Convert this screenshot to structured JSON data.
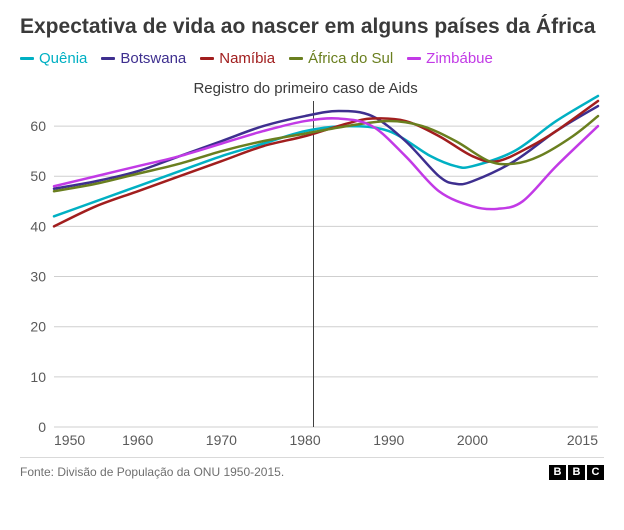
{
  "title": "Expectativa de vida ao nascer em alguns países da África",
  "legend": [
    {
      "label": "Quênia",
      "color": "#00b0c3"
    },
    {
      "label": "Botswana",
      "color": "#3e2f8f"
    },
    {
      "label": "Namíbia",
      "color": "#a11e1e"
    },
    {
      "label": "África do Sul",
      "color": "#6a7f1f"
    },
    {
      "label": "Zimbábue",
      "color": "#c23ae6"
    }
  ],
  "chart": {
    "type": "line",
    "background_color": "#ffffff",
    "grid_color": "#cfcfcf",
    "font_family": "Arial",
    "tick_fontsize": 14,
    "xlim": [
      1950,
      2015
    ],
    "ylim": [
      0,
      65
    ],
    "xticks": [
      1950,
      1960,
      1970,
      1980,
      1990,
      2000,
      2015
    ],
    "yticks": [
      0,
      10,
      20,
      30,
      40,
      50,
      60
    ],
    "line_width": 2.5,
    "annotation": {
      "x": 1981,
      "text": "Registro do primeiro caso de Aids",
      "line_color": "#404040",
      "fontsize": 15
    },
    "series": [
      {
        "name": "Quênia",
        "color": "#00b0c3",
        "points": [
          [
            1950,
            42
          ],
          [
            1955,
            45
          ],
          [
            1960,
            48
          ],
          [
            1965,
            51
          ],
          [
            1970,
            54
          ],
          [
            1975,
            56.5
          ],
          [
            1980,
            59
          ],
          [
            1985,
            60
          ],
          [
            1990,
            59
          ],
          [
            1995,
            54
          ],
          [
            1998,
            52
          ],
          [
            2000,
            52
          ],
          [
            2005,
            55
          ],
          [
            2010,
            61
          ],
          [
            2015,
            66
          ]
        ]
      },
      {
        "name": "Botswana",
        "color": "#3e2f8f",
        "points": [
          [
            1950,
            47.5
          ],
          [
            1955,
            49
          ],
          [
            1960,
            51
          ],
          [
            1965,
            54
          ],
          [
            1970,
            57
          ],
          [
            1975,
            60
          ],
          [
            1980,
            62
          ],
          [
            1984,
            63
          ],
          [
            1988,
            62
          ],
          [
            1992,
            57
          ],
          [
            1996,
            50
          ],
          [
            1998,
            48.5
          ],
          [
            2000,
            49
          ],
          [
            2005,
            53
          ],
          [
            2010,
            59
          ],
          [
            2015,
            64
          ]
        ]
      },
      {
        "name": "Namíbia",
        "color": "#a11e1e",
        "points": [
          [
            1950,
            40
          ],
          [
            1955,
            44
          ],
          [
            1960,
            47
          ],
          [
            1965,
            50
          ],
          [
            1970,
            53
          ],
          [
            1975,
            56
          ],
          [
            1980,
            58
          ],
          [
            1985,
            60.5
          ],
          [
            1988,
            61.5
          ],
          [
            1992,
            61
          ],
          [
            1996,
            58
          ],
          [
            2000,
            54
          ],
          [
            2003,
            53
          ],
          [
            2007,
            56
          ],
          [
            2010,
            59
          ],
          [
            2015,
            65
          ]
        ]
      },
      {
        "name": "África do Sul",
        "color": "#6a7f1f",
        "points": [
          [
            1950,
            47
          ],
          [
            1955,
            48.5
          ],
          [
            1960,
            50.5
          ],
          [
            1965,
            52.5
          ],
          [
            1970,
            55
          ],
          [
            1975,
            57
          ],
          [
            1980,
            58.5
          ],
          [
            1985,
            60
          ],
          [
            1990,
            61
          ],
          [
            1994,
            60
          ],
          [
            1998,
            57
          ],
          [
            2002,
            53
          ],
          [
            2005,
            52.5
          ],
          [
            2008,
            54
          ],
          [
            2012,
            58
          ],
          [
            2015,
            62
          ]
        ]
      },
      {
        "name": "Zimbábue",
        "color": "#c23ae6",
        "points": [
          [
            1950,
            48
          ],
          [
            1955,
            50
          ],
          [
            1960,
            52
          ],
          [
            1965,
            54
          ],
          [
            1970,
            56.5
          ],
          [
            1975,
            59
          ],
          [
            1980,
            61
          ],
          [
            1984,
            61.5
          ],
          [
            1988,
            60
          ],
          [
            1992,
            54
          ],
          [
            1996,
            47
          ],
          [
            2000,
            44
          ],
          [
            2003,
            43.5
          ],
          [
            2006,
            45
          ],
          [
            2010,
            52
          ],
          [
            2015,
            60
          ]
        ]
      }
    ]
  },
  "footer": {
    "source": "Fonte: Divisão de População da ONU 1950-2015.",
    "logo": [
      "B",
      "B",
      "C"
    ]
  }
}
